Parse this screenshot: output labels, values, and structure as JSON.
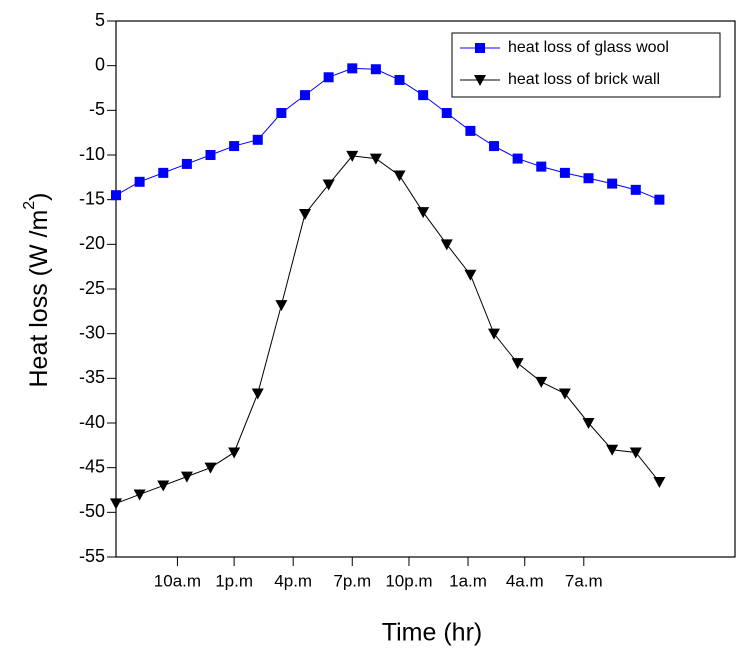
{
  "chart_data": {
    "type": "line",
    "xlabel": "Time (hr)",
    "ylabel": [
      "Heat loss (W /m",
      "2",
      ")"
    ],
    "xlim": [
      0,
      26.2
    ],
    "xticks": [
      {
        "value": 2.6,
        "label": "10a.m"
      },
      {
        "value": 5.0,
        "label": "1p.m"
      },
      {
        "value": 7.5,
        "label": "4p.m"
      },
      {
        "value": 10.0,
        "label": "7p.m"
      },
      {
        "value": 12.4,
        "label": "10p.m"
      },
      {
        "value": 14.9,
        "label": "1a.m"
      },
      {
        "value": 17.3,
        "label": "4a.m"
      },
      {
        "value": 19.8,
        "label": "7a.m"
      }
    ],
    "ylim": [
      -55,
      5
    ],
    "yticks": [
      5,
      0,
      -5,
      -10,
      -15,
      -20,
      -25,
      -30,
      -35,
      -40,
      -45,
      -50,
      -55
    ],
    "legend": "top-right",
    "x": [
      0,
      1,
      2,
      3,
      4,
      5,
      6,
      7,
      8,
      9,
      10,
      11,
      12,
      13,
      14,
      15,
      16,
      17,
      18,
      19,
      20,
      21,
      22,
      23
    ],
    "series": [
      {
        "name": "heat loss of glass wool",
        "color": "#0000ff",
        "marker": "square",
        "values": [
          -14.5,
          -13,
          -12,
          -11,
          -10,
          -9,
          -8.3,
          -5.3,
          -3.3,
          -1.3,
          -0.3,
          -0.4,
          -1.6,
          -3.3,
          -5.3,
          -7.3,
          -9,
          -10.4,
          -11.3,
          -12,
          -12.6,
          -13.2,
          -13.9,
          -15
        ]
      },
      {
        "name": "heat loss of brick wall",
        "color": "#000000",
        "marker": "triangle-down",
        "values": [
          -49,
          -48,
          -47,
          -46,
          -45,
          -43.3,
          -36.7,
          -26.8,
          -16.6,
          -13.3,
          -10.1,
          -10.4,
          -12.3,
          -16.4,
          -20,
          -23.4,
          -30,
          -33.3,
          -35.4,
          -36.7,
          -40,
          -43,
          -43.3,
          -46.6
        ]
      }
    ]
  }
}
